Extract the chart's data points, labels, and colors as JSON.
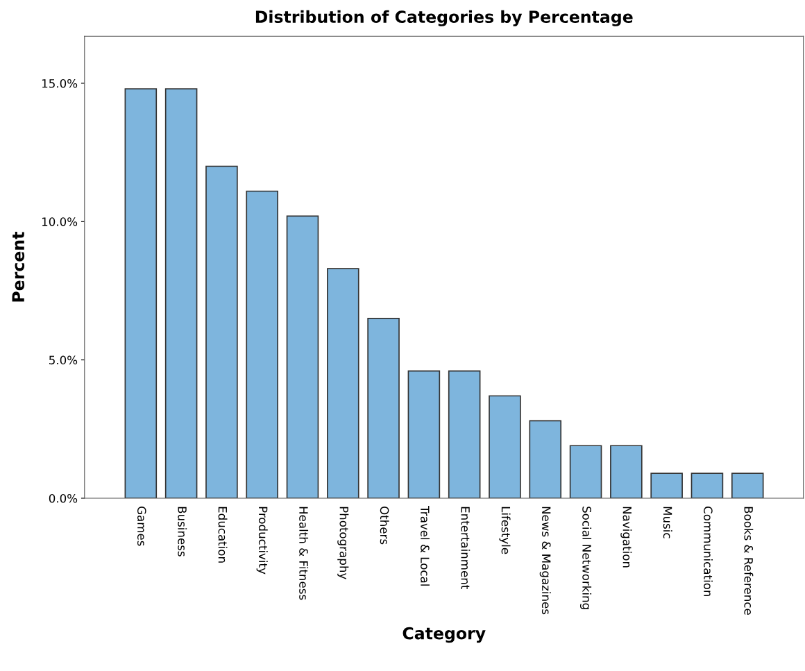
{
  "chart_data": {
    "type": "bar",
    "title": "Distribution of Categories by Percentage",
    "xlabel": "Category",
    "ylabel": "Percent",
    "categories": [
      "Games",
      "Business",
      "Education",
      "Productivity",
      "Health & Fitness",
      "Photography",
      "Others",
      "Travel & Local",
      "Entertainment",
      "Lifestyle",
      "News & Magazines",
      "Social Networking",
      "Navigation",
      "Music",
      "Communication",
      "Books & Reference"
    ],
    "values": [
      14.8,
      14.8,
      12.0,
      11.1,
      10.2,
      8.3,
      6.5,
      4.6,
      4.6,
      3.7,
      2.8,
      1.9,
      1.9,
      0.9,
      0.9,
      0.9
    ],
    "color": "#7eb5dd",
    "ylim": [
      0,
      16.7
    ],
    "yticks": [
      {
        "value": 0,
        "label": "0.0%"
      },
      {
        "value": 5,
        "label": "5.0%"
      },
      {
        "value": 10,
        "label": "10.0%"
      },
      {
        "value": 15,
        "label": "15.0%"
      }
    ],
    "grid": false
  }
}
